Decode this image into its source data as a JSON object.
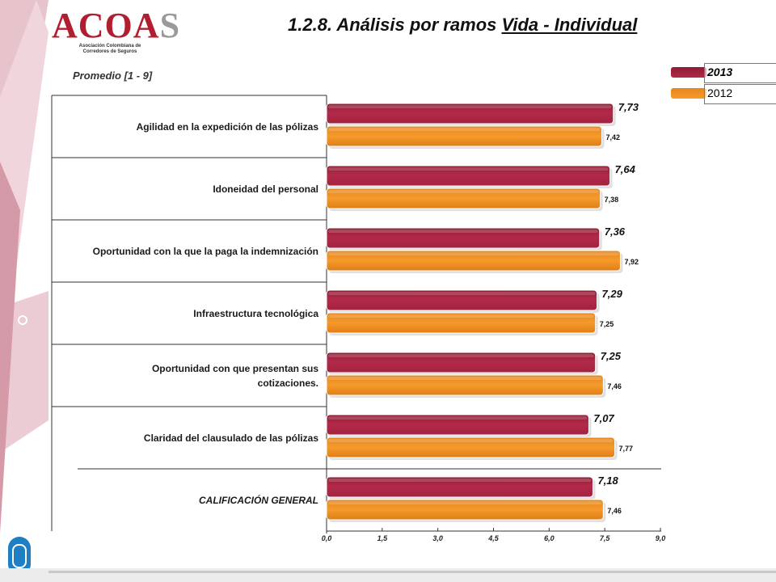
{
  "header": {
    "logo_text": "ACOA",
    "logo_s": "S",
    "logo_subtitle": "Asociación Colombiana de Corredores de Seguros",
    "title_prefix": "1.2.8. Análisis por ramos ",
    "title_underlined": "Vida - Individual"
  },
  "chart_data": {
    "type": "bar",
    "orientation": "horizontal",
    "subtitle": "Promedio  [1 - 9]",
    "categories": [
      "Agilidad en la expedición de las pólizas",
      "Idoneidad del personal",
      "Oportunidad con la que la paga la indemnización",
      "Infraestructura tecnológica",
      "Oportunidad con que presentan sus cotizaciones.",
      "Claridad del clausulado de las pólizas",
      "CALIFICACIÓN GENERAL"
    ],
    "series": [
      {
        "name": "2013",
        "color": "#a8243f",
        "values": [
          7.73,
          7.64,
          7.36,
          7.29,
          7.25,
          7.07,
          7.18
        ],
        "labels": [
          "7,73",
          "7,64",
          "7,36",
          "7,29",
          "7,25",
          "7,07",
          "7,18"
        ]
      },
      {
        "name": "2012",
        "color": "#ec8a1e",
        "values": [
          7.42,
          7.38,
          7.92,
          7.25,
          7.46,
          7.77,
          7.46
        ],
        "labels": [
          "7,42",
          "7,38",
          "7,92",
          "7,25",
          "7,46",
          "7,77",
          "7,46"
        ]
      }
    ],
    "xlim": [
      0,
      9
    ],
    "xticks": [
      0,
      1.5,
      3,
      4.5,
      6,
      7.5,
      9
    ],
    "xtick_labels": [
      "0,0",
      "1,5",
      "3,0",
      "4,5",
      "6,0",
      "7,5",
      "9,0"
    ],
    "legend_position": "top-right",
    "grid": false
  }
}
